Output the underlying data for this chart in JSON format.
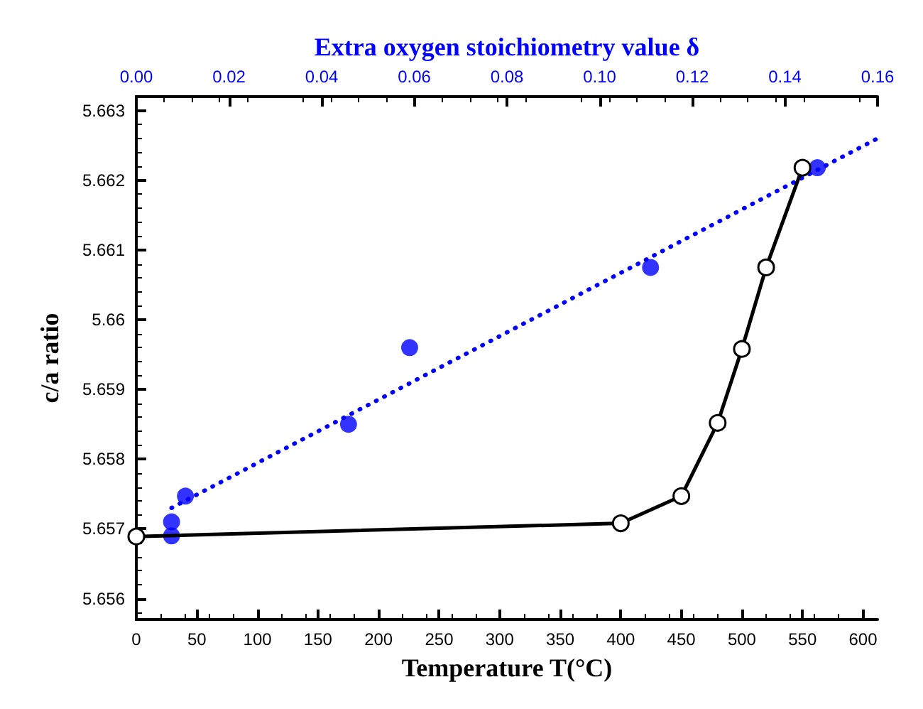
{
  "chart_data": {
    "type": "scatter",
    "xlabel": "Temperature T(°C)",
    "x2label": "Extra oxygen stoichiometry value δ",
    "ylabel": "c/a ratio",
    "xlim": [
      0,
      612
    ],
    "xticks": [
      0,
      50,
      100,
      150,
      200,
      250,
      300,
      350,
      400,
      450,
      500,
      550,
      600
    ],
    "x2lim": [
      0,
      0.16
    ],
    "x2ticks": [
      {
        "value": 0,
        "label": "0.00"
      },
      {
        "value": 0.02,
        "label": "0.02"
      },
      {
        "value": 0.04,
        "label": "0.04"
      },
      {
        "value": 0.06,
        "label": "0.06"
      },
      {
        "value": 0.08,
        "label": "0.08"
      },
      {
        "value": 0.1,
        "label": "0.10"
      },
      {
        "value": 0.12,
        "label": "0.12"
      },
      {
        "value": 0.14,
        "label": "0.14"
      },
      {
        "value": 0.16,
        "label": "0.16"
      }
    ],
    "ylim": [
      5.6557,
      5.6632
    ],
    "yticks": [
      5.656,
      5.657,
      5.658,
      5.659,
      5.66,
      5.661,
      5.662,
      5.663
    ],
    "grid": false,
    "series": [
      {
        "type": "line",
        "color": "#000000",
        "marker": "circle",
        "line_style": "solid",
        "x": [
          0,
          400,
          450,
          480,
          500,
          520,
          550
        ],
        "values": [
          5.65689,
          5.65708,
          5.65747,
          5.65852,
          5.65958,
          5.66075,
          5.66218
        ]
      },
      {
        "type": "scatter",
        "axis": "x2",
        "color": "#0000ff",
        "marker": "circle",
        "x": [
          0.0076,
          0.0076,
          0.0106,
          0.0458,
          0.059,
          0.111,
          0.147
        ],
        "values": [
          5.6571,
          5.6569,
          5.65747,
          5.6585,
          5.6596,
          5.66075,
          5.66218
        ]
      },
      {
        "type": "line",
        "axis": "x2",
        "color": "#0000ff",
        "marker": "none",
        "line_style": "dotted",
        "x": [
          0.0076,
          0.16
        ],
        "values": [
          5.6573,
          5.6626
        ]
      }
    ]
  }
}
